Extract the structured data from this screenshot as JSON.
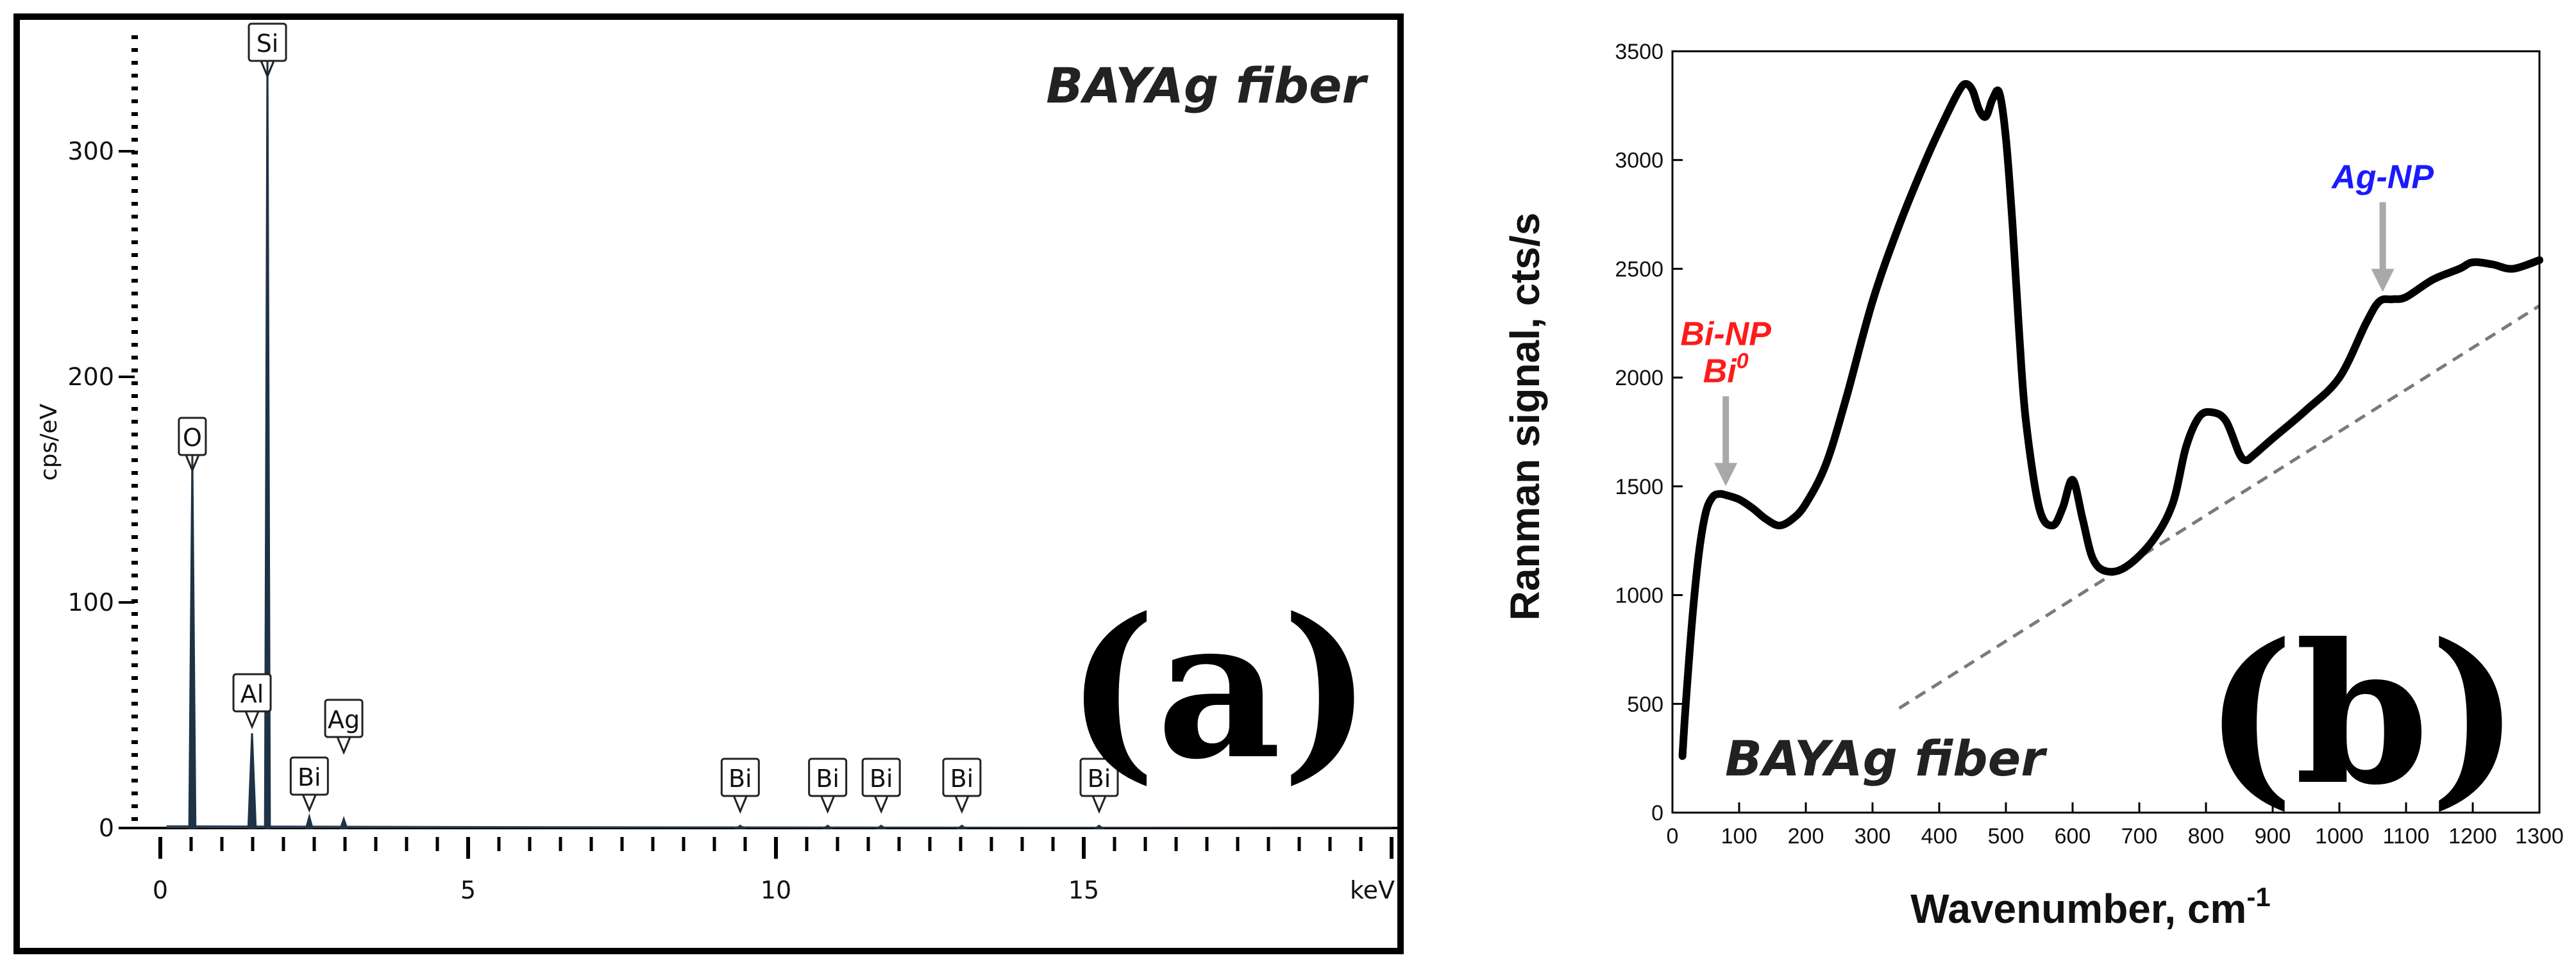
{
  "colors": {
    "bi_annotation": "#ff1a1a",
    "ag_annotation": "#1a1aff",
    "arrow": "#a9a9a9",
    "baseline": "#7a7a7a",
    "curve": "#000000"
  },
  "chart_data": [
    {
      "type": "line",
      "panel_label": "(a)",
      "title": "BAYAg fiber",
      "xlabel": "keV",
      "ylabel": "cps/eV",
      "xlim": [
        0,
        20
      ],
      "ylim": [
        0,
        350
      ],
      "x_ticks": [
        "0",
        "5",
        "10",
        "15"
      ],
      "y_ticks": [
        "0",
        "100",
        "200",
        "300"
      ],
      "grid": false,
      "peaks": [
        {
          "element": "O",
          "x": 0.52,
          "y": 165
        },
        {
          "element": "Al",
          "x": 1.49,
          "y": 42
        },
        {
          "element": "Si",
          "x": 1.74,
          "y": 345
        },
        {
          "element": "Bi",
          "x": 2.42,
          "y": 5
        },
        {
          "element": "Ag",
          "x": 2.98,
          "y": 4
        },
        {
          "element": "Bi",
          "x": 9.42,
          "y": 1
        },
        {
          "element": "Bi",
          "x": 10.84,
          "y": 1
        },
        {
          "element": "Bi",
          "x": 11.71,
          "y": 1
        },
        {
          "element": "Bi",
          "x": 13.02,
          "y": 1
        },
        {
          "element": "Bi",
          "x": 15.25,
          "y": 1
        }
      ]
    },
    {
      "type": "line",
      "panel_label": "(b)",
      "title": "BAYAg fiber",
      "xlabel": "Wavenumber, cm",
      "xlabel_sup": "-1",
      "ylabel": "Ranman signal, cts/s",
      "xlim": [
        0,
        1300
      ],
      "ylim": [
        0,
        3500
      ],
      "x_ticks": [
        "0",
        "100",
        "200",
        "300",
        "400",
        "500",
        "600",
        "700",
        "800",
        "900",
        "1000",
        "1100",
        "1200",
        "1300"
      ],
      "y_ticks": [
        "0",
        "500",
        "1000",
        "1500",
        "2000",
        "2500",
        "3000",
        "3500"
      ],
      "grid": false,
      "series": [
        {
          "x": [
            15,
            20,
            30,
            40,
            50,
            60,
            70,
            80,
            100,
            120,
            140,
            160,
            180,
            200,
            230,
            260,
            300,
            340,
            380,
            410,
            430,
            440,
            450,
            460,
            470,
            480,
            490,
            500,
            510,
            520,
            530,
            550,
            570,
            585,
            600,
            615,
            630,
            650,
            680,
            720,
            750,
            770,
            790,
            810,
            830,
            850,
            860,
            870,
            900,
            950,
            1000,
            1040,
            1060,
            1080,
            1100,
            1140,
            1180,
            1200,
            1230,
            1260,
            1300
          ],
          "y": [
            260,
            500,
            900,
            1200,
            1380,
            1450,
            1465,
            1460,
            1440,
            1400,
            1350,
            1320,
            1350,
            1420,
            1600,
            1900,
            2350,
            2700,
            3000,
            3200,
            3320,
            3350,
            3320,
            3230,
            3200,
            3280,
            3310,
            3100,
            2700,
            2200,
            1800,
            1400,
            1320,
            1400,
            1530,
            1350,
            1170,
            1110,
            1130,
            1250,
            1420,
            1680,
            1820,
            1840,
            1800,
            1650,
            1620,
            1640,
            1720,
            1850,
            2000,
            2250,
            2350,
            2360,
            2370,
            2450,
            2500,
            2530,
            2520,
            2500,
            2540
          ]
        }
      ],
      "baseline": {
        "x": [
          340,
          1300
        ],
        "y": [
          480,
          2330
        ]
      },
      "annotations": [
        {
          "lines": [
            "Bi-NP",
            "Bi"
          ],
          "superscript": "0",
          "arrow_x": 80,
          "color": "#ff1a1a"
        },
        {
          "lines": [
            "Ag-NP"
          ],
          "arrow_x": 1065,
          "color": "#1a1aff"
        }
      ]
    }
  ]
}
